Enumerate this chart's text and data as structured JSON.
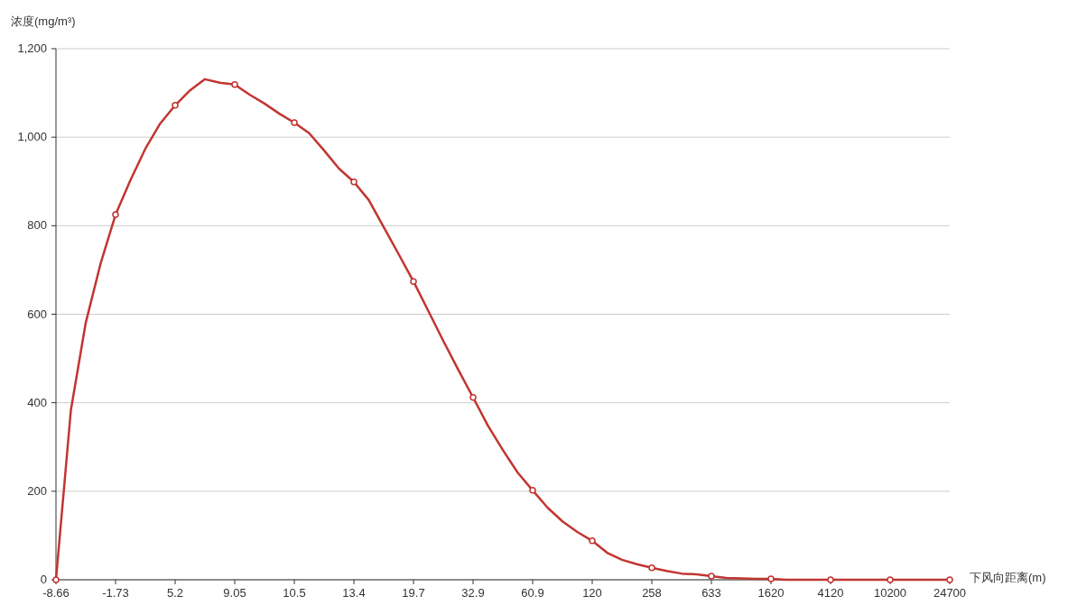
{
  "chart_data": {
    "type": "line",
    "xlabel": "下风向距离(m)",
    "ylabel": "浓度(mg/m³)",
    "categories": [
      "-8.66",
      null,
      null,
      null,
      "-1.73",
      null,
      null,
      null,
      "5.2",
      null,
      null,
      null,
      "9.05",
      null,
      null,
      null,
      "10.5",
      null,
      null,
      null,
      "13.4",
      null,
      null,
      null,
      "19.7",
      null,
      null,
      null,
      "32.9",
      null,
      null,
      null,
      "60.9",
      null,
      null,
      null,
      "120",
      null,
      null,
      null,
      "258",
      null,
      null,
      null,
      "633",
      null,
      null,
      null,
      "1620",
      null,
      null,
      null,
      "4120",
      null,
      null,
      null,
      "10200",
      null,
      null,
      null,
      "24700"
    ],
    "series": [
      {
        "color": "#c23531",
        "marker": "none",
        "values": [
          0,
          383,
          581,
          715,
          825,
          903,
          974,
          1031,
          1072,
          1106,
          1131,
          1123,
          1119,
          1096,
          1076,
          1053,
          1033,
          1009,
          970,
          929,
          899,
          858,
          797,
          736,
          674,
          607,
          540,
          475,
          412,
          348,
          293,
          242,
          202,
          163,
          132,
          108,
          88,
          61,
          45,
          35,
          27,
          20,
          14,
          12,
          8,
          4,
          3,
          2,
          2,
          0,
          0,
          0,
          0,
          0,
          0,
          0,
          0,
          0,
          0,
          0,
          0
        ]
      },
      {
        "type": "scatter",
        "color": "#c23531",
        "values": [
          0,
          null,
          null,
          null,
          825,
          null,
          null,
          null,
          1072,
          null,
          null,
          null,
          1119,
          null,
          null,
          null,
          1033,
          null,
          null,
          null,
          899,
          null,
          null,
          null,
          674,
          null,
          null,
          null,
          412,
          null,
          null,
          null,
          202,
          null,
          null,
          null,
          88,
          null,
          null,
          null,
          27,
          null,
          null,
          null,
          8,
          null,
          null,
          null,
          2,
          null,
          null,
          null,
          0,
          null,
          null,
          null,
          0,
          null,
          null,
          null,
          0
        ]
      }
    ],
    "ylim": [
      0,
      1200
    ],
    "yticks": [
      0,
      200,
      400,
      600,
      800,
      {
        "value": 1000,
        "label": "1,000"
      },
      {
        "value": 1200,
        "label": "1,200"
      }
    ],
    "grid": "y",
    "marker": "circle",
    "line_style": "solid"
  }
}
